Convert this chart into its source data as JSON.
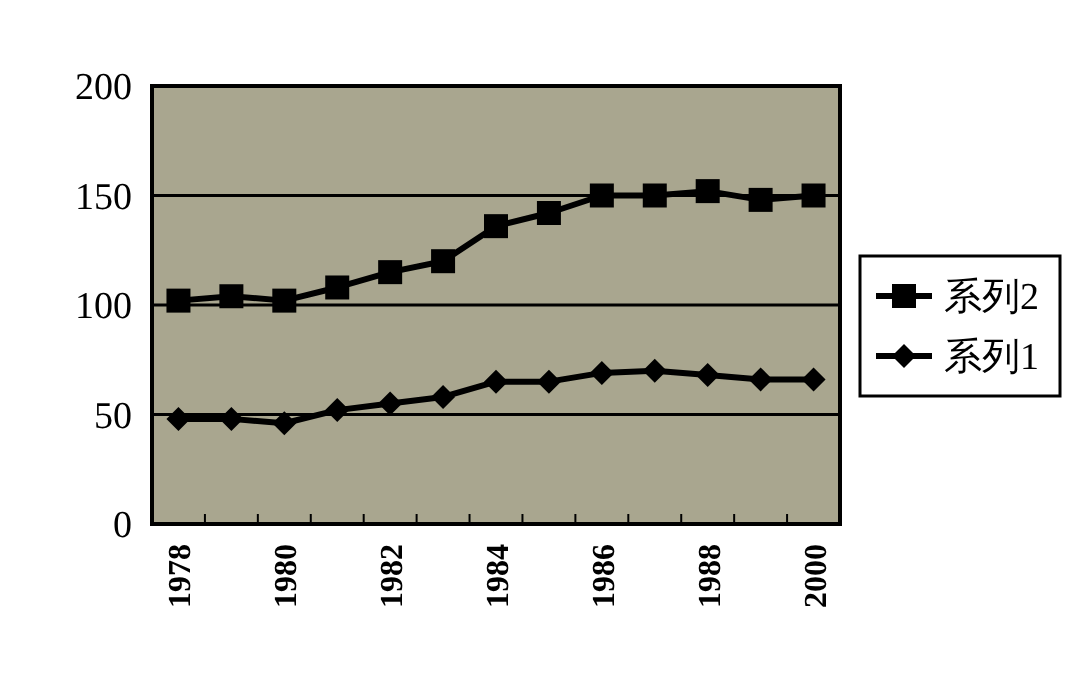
{
  "chart_data": {
    "type": "line",
    "categories": [
      "1978",
      null,
      "1980",
      null,
      "1982",
      null,
      "1984",
      null,
      "1986",
      null,
      "1988",
      null,
      "2000"
    ],
    "series": [
      {
        "name": "系列2",
        "color": "#000000",
        "marker": "square",
        "values": [
          102,
          104,
          102,
          108,
          115,
          120,
          136,
          142,
          150,
          150,
          152,
          148,
          150
        ]
      },
      {
        "name": "系列1",
        "color": "#000000",
        "marker": "diamond",
        "values": [
          48,
          48,
          46,
          52,
          55,
          58,
          65,
          65,
          69,
          70,
          68,
          66,
          66
        ]
      }
    ],
    "ylim": [
      0,
      200
    ],
    "yticks": [
      0,
      50,
      100,
      150,
      200
    ],
    "grid": "y",
    "legend": "right"
  }
}
